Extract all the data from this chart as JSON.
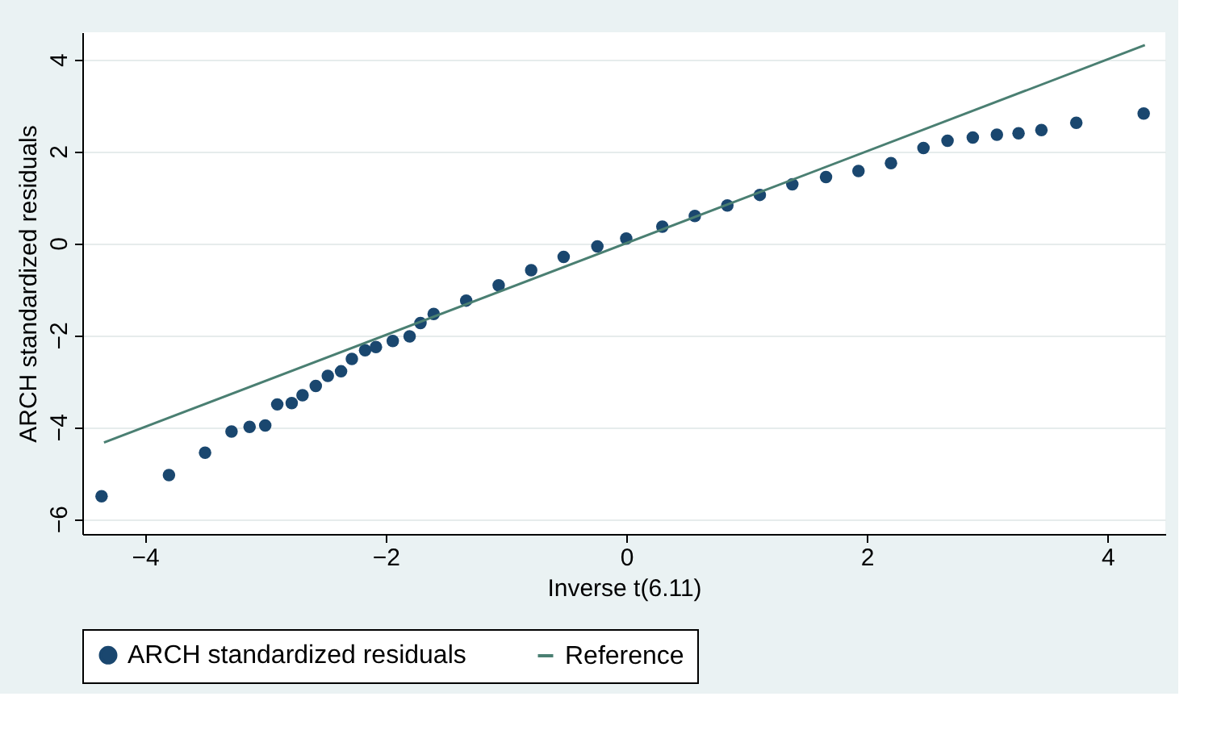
{
  "chart_data": {
    "type": "scatter",
    "xlabel": "Inverse t(6.11)",
    "ylabel": "ARCH standardized residuals",
    "xlim": [
      -4.52,
      4.48
    ],
    "ylim": [
      -6.33,
      4.59
    ],
    "xticks": [
      -4,
      -2,
      0,
      2,
      4
    ],
    "yticks": [
      -6,
      -4,
      -2,
      0,
      2,
      4
    ],
    "grid": "y",
    "legend": "bottom",
    "series": [
      {
        "name": "ARCH standardized residuals",
        "color": "#1a476f",
        "marker": "circle",
        "x": [
          -4.36,
          -3.8,
          -3.5,
          -3.28,
          -3.13,
          -3.0,
          -2.9,
          -2.78,
          -2.69,
          -2.58,
          -2.48,
          -2.37,
          -2.28,
          -2.17,
          -2.08,
          -1.94,
          -1.8,
          -1.71,
          -1.6,
          -1.33,
          -1.06,
          -0.79,
          -0.52,
          -0.24,
          0,
          0.3,
          0.57,
          0.84,
          1.11,
          1.38,
          1.66,
          1.93,
          2.2,
          2.47,
          2.67,
          2.88,
          3.08,
          3.26,
          3.45,
          3.74,
          4.3
        ],
        "values": [
          -5.51,
          -5.05,
          -4.56,
          -4.1,
          -4.0,
          -3.97,
          -3.51,
          -3.48,
          -3.31,
          -3.11,
          -2.89,
          -2.79,
          -2.52,
          -2.33,
          -2.26,
          -2.13,
          -2.03,
          -1.74,
          -1.54,
          -1.25,
          -0.92,
          -0.59,
          -0.3,
          -0.07,
          0.1,
          0.36,
          0.59,
          0.82,
          1.05,
          1.28,
          1.44,
          1.57,
          1.74,
          2.07,
          2.23,
          2.3,
          2.36,
          2.39,
          2.46,
          2.62,
          2.82
        ]
      },
      {
        "name": "Reference",
        "type": "line",
        "color": "#4a7f72",
        "line_style": "solid",
        "x": [
          -4.34,
          4.31
        ],
        "values": [
          -4.34,
          4.31
        ]
      }
    ]
  }
}
